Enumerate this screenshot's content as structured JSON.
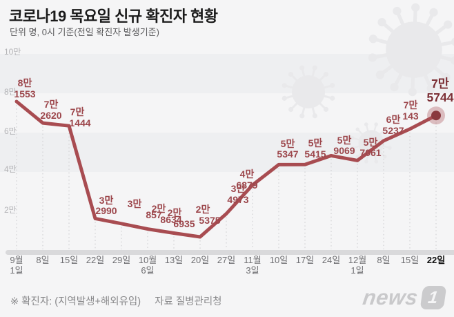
{
  "header": {
    "title": "코로나19 목요일 신규 확진자 현황",
    "subtitle": "단위 명, 0시 기준(전일 확진자 발생기준)"
  },
  "chart_data": {
    "type": "line",
    "title": "코로나19 목요일 신규 확진자 현황",
    "unit_note": "단위 명, 0시 기준(전일 확진자 발생기준)",
    "y_axis": {
      "ticks": [
        "10만",
        "8만",
        "6만",
        "4만",
        "2만"
      ],
      "tick_values": [
        100000,
        80000,
        60000,
        40000,
        20000
      ],
      "min": 0,
      "max": 100000
    },
    "x_axis": {
      "ticks": [
        [
          "9월",
          "1일"
        ],
        [
          "8일"
        ],
        [
          "15일"
        ],
        [
          "22일"
        ],
        [
          "29일"
        ],
        [
          "10월",
          "6일"
        ],
        [
          "13일"
        ],
        [
          "20일"
        ],
        [
          "27일"
        ],
        [
          "11월",
          "3일"
        ],
        [
          "10일"
        ],
        [
          "17일"
        ],
        [
          "24일"
        ],
        [
          "12월",
          "1일"
        ],
        [
          "8일"
        ],
        [
          "15일"
        ],
        [
          "22일"
        ]
      ]
    },
    "series": [
      {
        "name": "목요일 신규 확진자",
        "values": [
          81553,
          72620,
          71444,
          32990,
          30857,
          28634,
          26935,
          25375,
          34973,
          46879,
          55347,
          55415,
          59069,
          57061,
          65237,
          70143,
          75744
        ]
      }
    ],
    "point_labels": [
      [
        "8만",
        "1553"
      ],
      [
        "7만",
        "2620"
      ],
      [
        "7만",
        "1444"
      ],
      [
        "3만",
        "2990"
      ],
      [
        "3만",
        "857"
      ],
      [
        "2만",
        "8634"
      ],
      [
        "2만",
        "6935"
      ],
      [
        "2만",
        "5375"
      ],
      [
        "3만",
        "4973"
      ],
      [
        "4만",
        "6879"
      ],
      [
        "5만",
        "5347"
      ],
      [
        "5만",
        "5415"
      ],
      [
        "5만",
        "9069"
      ],
      [
        "5만",
        "7061"
      ],
      [
        "6만",
        "5237"
      ],
      [
        "7만",
        "143"
      ],
      [
        "7만",
        "5744"
      ]
    ],
    "highlight_index": 16,
    "legend": "none",
    "grid": "dotted-vertical",
    "colors": {
      "line": "#a84c51",
      "point_label": "#9c464b",
      "highlight_label": "#7b2e34",
      "marker": "#8a383e",
      "marker_halo": "#ab545a",
      "axis_bar": "#d9d9db"
    }
  },
  "footer": {
    "note": "※ 확진자: (지역발생+해외유입)",
    "source": "자료 질병관리청"
  },
  "logo": {
    "text": "news",
    "badge": "1"
  }
}
